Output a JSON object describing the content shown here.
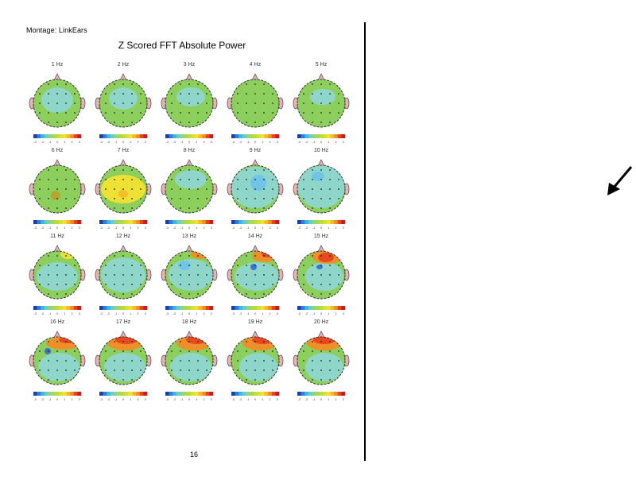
{
  "document": {
    "montage": "Montage: LinkEars",
    "title": "Z Scored FFT Absolute Power",
    "page_number": "16"
  },
  "colorbar": {
    "tick_labels": [
      "-3",
      "-2.5",
      "-2",
      "-1.5",
      "-1",
      "-0.5",
      "0",
      "0.5",
      "1",
      "1.5",
      "2",
      "2.5",
      "3"
    ],
    "colors": [
      "#1c3ea8",
      "#2f7fd6",
      "#39b8e8",
      "#65cfc4",
      "#8fd28a",
      "#a8d94a",
      "#b9dd3a",
      "#d8e133",
      "#f2e130",
      "#f5b92c",
      "#f28c27",
      "#e8431f",
      "#c81b1b"
    ]
  },
  "maps": [
    {
      "freq": "1 Hz"
    },
    {
      "freq": "2 Hz"
    },
    {
      "freq": "3 Hz"
    },
    {
      "freq": "4 Hz"
    },
    {
      "freq": "5 Hz"
    },
    {
      "freq": "6 Hz"
    },
    {
      "freq": "7 Hz"
    },
    {
      "freq": "8 Hz"
    },
    {
      "freq": "9 Hz"
    },
    {
      "freq": "10 Hz"
    },
    {
      "freq": "11 Hz"
    },
    {
      "freq": "12 Hz"
    },
    {
      "freq": "13 Hz"
    },
    {
      "freq": "14 Hz"
    },
    {
      "freq": "15 Hz"
    },
    {
      "freq": "16 Hz"
    },
    {
      "freq": "17 Hz"
    },
    {
      "freq": "18 Hz"
    },
    {
      "freq": "19 Hz"
    },
    {
      "freq": "20 Hz"
    }
  ]
}
